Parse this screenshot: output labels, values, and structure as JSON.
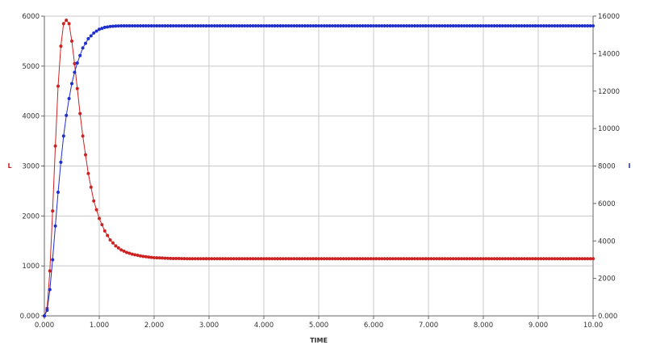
{
  "chart_data": {
    "type": "line",
    "title": "",
    "xlabel": "TIME",
    "ylabel_left": "L",
    "ylabel_right": "I",
    "xlim": [
      0,
      10
    ],
    "ylim_left": [
      0,
      6000
    ],
    "ylim_right": [
      0,
      16000
    ],
    "x_ticks": [
      0,
      1,
      2,
      3,
      4,
      5,
      6,
      7,
      8,
      9,
      10
    ],
    "x_tick_labels": [
      "0.000",
      "1.000",
      "2.000",
      "3.000",
      "4.000",
      "5.000",
      "6.000",
      "7.000",
      "8.000",
      "9.000",
      "10.00"
    ],
    "y_left_ticks": [
      0,
      1000,
      2000,
      3000,
      4000,
      5000,
      6000
    ],
    "y_left_tick_labels": [
      "0.000",
      "1000",
      "2000",
      "3000",
      "4000",
      "5000",
      "6000"
    ],
    "y_right_ticks": [
      0,
      2000,
      4000,
      6000,
      8000,
      10000,
      12000,
      14000,
      16000
    ],
    "y_right_tick_labels": [
      "0.000",
      "2000",
      "4000",
      "6000",
      "8000",
      "10000",
      "12000",
      "14000",
      "16000"
    ],
    "grid": true,
    "legend": "none",
    "series": [
      {
        "name": "L",
        "axis": "left",
        "color": "#cc2222",
        "x": [
          0,
          0.05,
          0.1,
          0.15,
          0.2,
          0.25,
          0.3,
          0.35,
          0.4,
          0.45,
          0.5,
          0.55,
          0.6,
          0.65,
          0.7,
          0.8,
          0.9,
          1.0,
          1.1,
          1.2,
          1.3,
          1.4,
          1.5,
          1.6,
          1.8,
          2.0,
          2.3,
          2.6,
          3.0,
          4.0,
          5.0,
          6.0,
          7.0,
          8.0,
          9.0,
          10.0
        ],
        "values": [
          0,
          150,
          900,
          2100,
          3400,
          4600,
          5400,
          5850,
          5920,
          5850,
          5500,
          5050,
          4550,
          4050,
          3600,
          2850,
          2300,
          1950,
          1700,
          1520,
          1400,
          1320,
          1270,
          1235,
          1190,
          1165,
          1150,
          1145,
          1145,
          1145,
          1145,
          1145,
          1145,
          1145,
          1145,
          1145
        ]
      },
      {
        "name": "I",
        "axis": "right",
        "color": "#1f2fcc",
        "x": [
          0,
          0.05,
          0.1,
          0.15,
          0.2,
          0.25,
          0.3,
          0.35,
          0.4,
          0.45,
          0.5,
          0.55,
          0.6,
          0.7,
          0.8,
          0.9,
          1.0,
          1.1,
          1.2,
          1.3,
          1.4,
          1.5,
          2.0,
          3.0,
          4.0,
          5.0,
          6.0,
          7.0,
          8.0,
          9.0,
          10.0
        ],
        "values": [
          0,
          300,
          1400,
          3000,
          4800,
          6600,
          8200,
          9600,
          10700,
          11600,
          12400,
          13000,
          13500,
          14300,
          14800,
          15100,
          15300,
          15400,
          15450,
          15470,
          15480,
          15480,
          15480,
          15480,
          15480,
          15480,
          15480,
          15480,
          15480,
          15480,
          15480
        ]
      }
    ]
  }
}
